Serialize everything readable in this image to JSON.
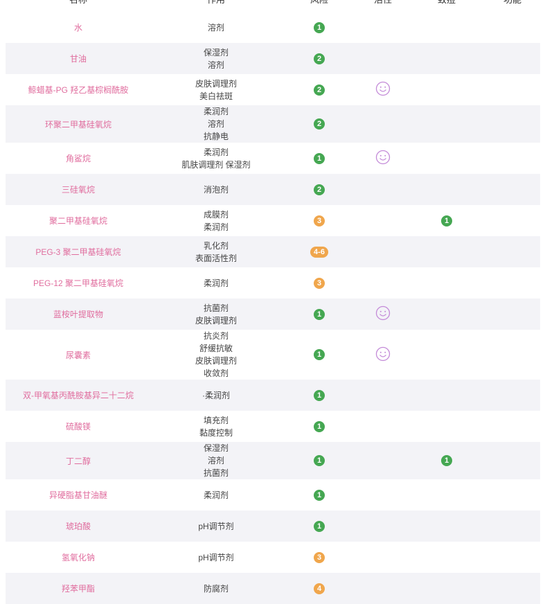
{
  "colors": {
    "name": "#e06d9e",
    "stripe": "#f3f3f7",
    "risk_low": "#45a752",
    "risk_mid": "#f0a64c",
    "active_icon": "#c48bd8"
  },
  "headers": [
    "名称",
    "作用",
    "风险",
    "活性",
    "致痘",
    "功能"
  ],
  "rows": [
    {
      "name": "水",
      "uses": [
        "溶剂"
      ],
      "risk": "1",
      "level": "low",
      "active": false,
      "acne": ""
    },
    {
      "name": "甘油",
      "uses": [
        "保湿剂",
        "溶剂"
      ],
      "risk": "2",
      "level": "low",
      "active": false,
      "acne": ""
    },
    {
      "name": "鲸蜡基-PG 羟乙基棕榈酰胺",
      "uses": [
        "皮肤调理剂",
        "美白祛斑"
      ],
      "risk": "2",
      "level": "low",
      "active": true,
      "acne": ""
    },
    {
      "name": "环聚二甲基硅氧烷",
      "uses": [
        "柔润剂",
        "溶剂",
        "抗静电"
      ],
      "risk": "2",
      "level": "low",
      "active": false,
      "acne": ""
    },
    {
      "name": "角鲨烷",
      "uses": [
        "柔润剂",
        "肌肤调理剂 保湿剂"
      ],
      "risk": "1",
      "level": "low",
      "active": true,
      "acne": ""
    },
    {
      "name": "三硅氧烷",
      "uses": [
        "消泡剂"
      ],
      "risk": "2",
      "level": "low",
      "active": false,
      "acne": ""
    },
    {
      "name": "聚二甲基硅氧烷",
      "uses": [
        "成膜剂",
        "柔润剂"
      ],
      "risk": "3",
      "level": "mid",
      "active": false,
      "acne": "1"
    },
    {
      "name": "PEG-3 聚二甲基硅氧烷",
      "uses": [
        "乳化剂",
        "表面活性剂"
      ],
      "risk": "4-6",
      "level": "mid",
      "active": false,
      "acne": ""
    },
    {
      "name": "PEG-12 聚二甲基硅氧烷",
      "uses": [
        "柔润剂"
      ],
      "risk": "3",
      "level": "mid",
      "active": false,
      "acne": ""
    },
    {
      "name": "蓝桉叶提取物",
      "uses": [
        "抗菌剂",
        "皮肤调理剂"
      ],
      "risk": "1",
      "level": "low",
      "active": true,
      "acne": ""
    },
    {
      "name": "尿囊素",
      "uses": [
        "抗炎剂",
        "舒缓抗敏",
        "皮肤调理剂",
        "收敛剂"
      ],
      "risk": "1",
      "level": "low",
      "active": true,
      "acne": ""
    },
    {
      "name": "双-甲氧基丙酰胺基异二十二烷",
      "uses": [
        "·柔润剂"
      ],
      "risk": "1",
      "level": "low",
      "active": false,
      "acne": ""
    },
    {
      "name": "硫酸镁",
      "uses": [
        "填充剂",
        "黏度控制"
      ],
      "risk": "1",
      "level": "low",
      "active": false,
      "acne": ""
    },
    {
      "name": "丁二醇",
      "uses": [
        "保湿剂",
        "溶剂",
        "抗菌剂"
      ],
      "risk": "1",
      "level": "low",
      "active": false,
      "acne": "1"
    },
    {
      "name": "异硬脂基甘油醚",
      "uses": [
        "柔润剂"
      ],
      "risk": "1",
      "level": "low",
      "active": false,
      "acne": ""
    },
    {
      "name": "琥珀酸",
      "uses": [
        "pH调节剂"
      ],
      "risk": "1",
      "level": "low",
      "active": false,
      "acne": ""
    },
    {
      "name": "氢氧化钠",
      "uses": [
        "pH调节剂"
      ],
      "risk": "3",
      "level": "mid",
      "active": false,
      "acne": ""
    },
    {
      "name": "羟苯甲酯",
      "uses": [
        "防腐剂"
      ],
      "risk": "4",
      "level": "mid",
      "active": false,
      "acne": ""
    }
  ]
}
